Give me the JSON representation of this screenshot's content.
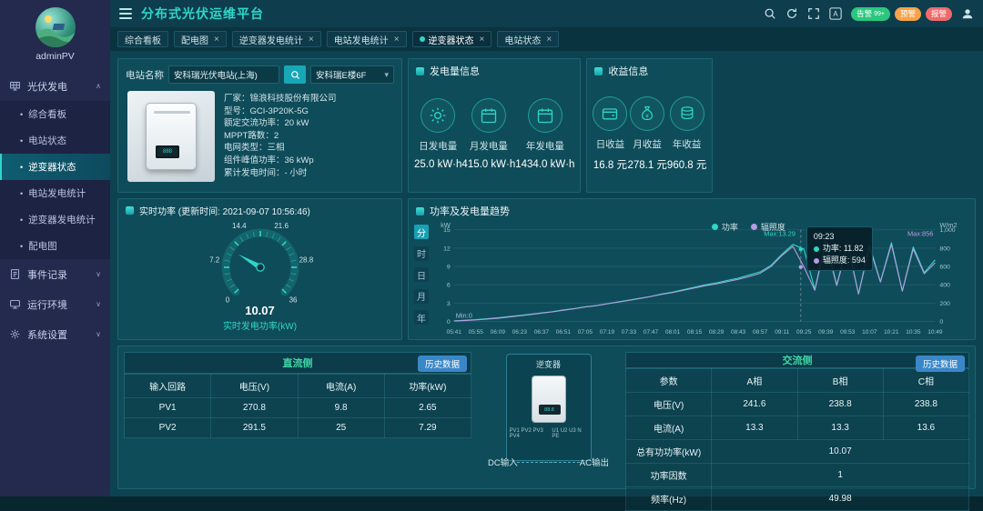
{
  "header": {
    "title": "分布式光伏运维平台",
    "badges": [
      {
        "label": "告警",
        "count": "99+",
        "color": "#2bc77e"
      },
      {
        "label": "预警",
        "count": "",
        "color": "#f5a34b"
      },
      {
        "label": "报警",
        "count": "",
        "color": "#ef6a6a"
      }
    ]
  },
  "tabs": {
    "items": [
      {
        "label": "综合看板",
        "closable": false,
        "active": false
      },
      {
        "label": "配电图",
        "closable": true,
        "active": false
      },
      {
        "label": "逆变器发电统计",
        "closable": true,
        "active": false
      },
      {
        "label": "电站发电统计",
        "closable": true,
        "active": false
      },
      {
        "label": "逆变器状态",
        "closable": true,
        "active": true
      },
      {
        "label": "电站状态",
        "closable": true,
        "active": false
      }
    ]
  },
  "sidebar": {
    "user": "adminPV",
    "menus": [
      {
        "label": "光伏发电",
        "icon": "solar-menu",
        "expanded": true,
        "items": [
          {
            "label": "综合看板",
            "active": false
          },
          {
            "label": "电站状态",
            "active": false
          },
          {
            "label": "逆变器状态",
            "active": true
          },
          {
            "label": "电站发电统计",
            "active": false
          },
          {
            "label": "逆变器发电统计",
            "active": false
          },
          {
            "label": "配电图",
            "active": false
          }
        ]
      },
      {
        "label": "事件记录",
        "icon": "events-menu",
        "expanded": false,
        "items": []
      },
      {
        "label": "运行环境",
        "icon": "environment-menu",
        "expanded": false,
        "items": []
      },
      {
        "label": "系统设置",
        "icon": "settings-menu",
        "expanded": false,
        "items": []
      }
    ]
  },
  "station": {
    "name_label": "电站名称",
    "name_value": "安科瑞光伏电站(上海)",
    "building_value": "安科瑞E楼6F",
    "details": [
      "厂家：锦浪科技股份有限公司",
      "型号：GCI-3P20K-5G",
      "额定交流功率：20 kW",
      "MPPT路数：2",
      "电网类型：三相",
      "组件峰值功率：36 kWp",
      "累计发电时间：- 小时"
    ]
  },
  "generation": {
    "title": "发电量信息",
    "items": [
      {
        "icon": "sun",
        "label": "日发电量",
        "value": "25.0 kW·h"
      },
      {
        "icon": "calendar",
        "label": "月发电量",
        "value": "415.0 kW·h"
      },
      {
        "icon": "calendar",
        "label": "年发电量",
        "value": "1434.0 kW·h"
      }
    ]
  },
  "revenue": {
    "title": "收益信息",
    "items": [
      {
        "icon": "wallet",
        "label": "日收益",
        "value": "16.8 元"
      },
      {
        "icon": "moneybag",
        "label": "月收益",
        "value": "278.1 元"
      },
      {
        "icon": "coins",
        "label": "年收益",
        "value": "960.8 元"
      }
    ]
  },
  "realtime": {
    "title": "实时功率 (更新时间: 2021-09-07 10:56:46)",
    "value": 10.07,
    "value_display": "10.07",
    "unit_label": "实时发电功率(kW)",
    "min": 0,
    "max": 36,
    "ticks": [
      0,
      7.2,
      14.4,
      21.6,
      28.8,
      36
    ]
  },
  "chart_data": {
    "type": "line",
    "title": "功率及发电量趋势",
    "period_tabs": [
      "分",
      "时",
      "日",
      "月",
      "年"
    ],
    "active_period": "分",
    "legend": [
      "功率",
      "辐照度"
    ],
    "x_labels": [
      "05:41",
      "05:55",
      "06:09",
      "06:23",
      "06:37",
      "06:51",
      "07:05",
      "07:19",
      "07:33",
      "07:47",
      "08:01",
      "08:15",
      "08:29",
      "08:43",
      "08:57",
      "09:11",
      "09:25",
      "09:39",
      "09:53",
      "10:07",
      "10:21",
      "10:35",
      "10:49"
    ],
    "series": [
      {
        "name": "功率",
        "color": "#2fd6c8",
        "axis": "left",
        "values": [
          0.1,
          0.2,
          0.3,
          0.45,
          0.6,
          0.8,
          1.0,
          1.2,
          1.4,
          1.6,
          1.9,
          2.1,
          2.4,
          2.6,
          2.9,
          3.2,
          3.5,
          3.8,
          4.1,
          4.5,
          4.8,
          5.2,
          5.6,
          6.0,
          6.3,
          6.7,
          7.1,
          7.6,
          8.1,
          9.2,
          11.0,
          12.6,
          11.82,
          5.2,
          13.29,
          6.0,
          12.8,
          4.5,
          12.5,
          6.5,
          12.9,
          5.0,
          12.2,
          8.0,
          10.07
        ]
      },
      {
        "name": "辐照度",
        "color": "#b79ce0",
        "axis": "right",
        "values": [
          5,
          10,
          16,
          25,
          35,
          48,
          62,
          75,
          90,
          105,
          122,
          138,
          158,
          172,
          192,
          210,
          230,
          250,
          272,
          295,
          315,
          340,
          365,
          390,
          410,
          435,
          460,
          490,
          525,
          600,
          720,
          820,
          594,
          340,
          856,
          390,
          830,
          300,
          810,
          430,
          840,
          330,
          790,
          520,
          640
        ]
      }
    ],
    "left_axis": {
      "label": "kW",
      "min": 0,
      "max": 15,
      "ticks": [
        0,
        3,
        6,
        9,
        12,
        15
      ]
    },
    "right_axis": {
      "label": "W/m2",
      "min": 0,
      "max": 1000,
      "ticks": [
        0,
        200,
        400,
        600,
        800,
        1000
      ],
      "tick_labels": [
        "0",
        "200",
        "400",
        "600",
        "800",
        "1,000"
      ]
    },
    "annotations": {
      "left_max": "Max:13.29",
      "left_min": "Min:0",
      "right_max": "Max:856"
    },
    "tooltip": {
      "time": "09:23",
      "x_fraction": 0.7208,
      "rows": [
        {
          "name": "功率",
          "value": "11.82"
        },
        {
          "name": "辐照度",
          "value": "594"
        }
      ]
    }
  },
  "dc_side": {
    "title": "直流侧",
    "history": "历史数据",
    "headers": [
      "输入回路",
      "电压(V)",
      "电流(A)",
      "功率(kW)"
    ],
    "rows": [
      [
        "PV1",
        "270.8",
        "9.8",
        "2.65"
      ],
      [
        "PV2",
        "291.5",
        "25",
        "7.29"
      ]
    ]
  },
  "inverter_diagram": {
    "label": "逆变器",
    "dc": "DC输入",
    "ac": "AC输出",
    "dc_terminals": "PV1 PV2 PV3 PV4",
    "ac_terminals": "U1 U2 U3 N PE",
    "screen_text": "88.8"
  },
  "ac_side": {
    "title": "交流侧",
    "history": "历史数据",
    "headers": [
      "参数",
      "A相",
      "B相",
      "C相"
    ],
    "rows": [
      [
        "电压(V)",
        "241.6",
        "238.8",
        "238.8"
      ],
      [
        "电流(A)",
        "13.3",
        "13.3",
        "13.6"
      ]
    ],
    "merged_rows": [
      {
        "label": "总有功功率(kW)",
        "value": "10.07"
      },
      {
        "label": "功率因数",
        "value": "1"
      },
      {
        "label": "频率(Hz)",
        "value": "49.98"
      }
    ]
  }
}
